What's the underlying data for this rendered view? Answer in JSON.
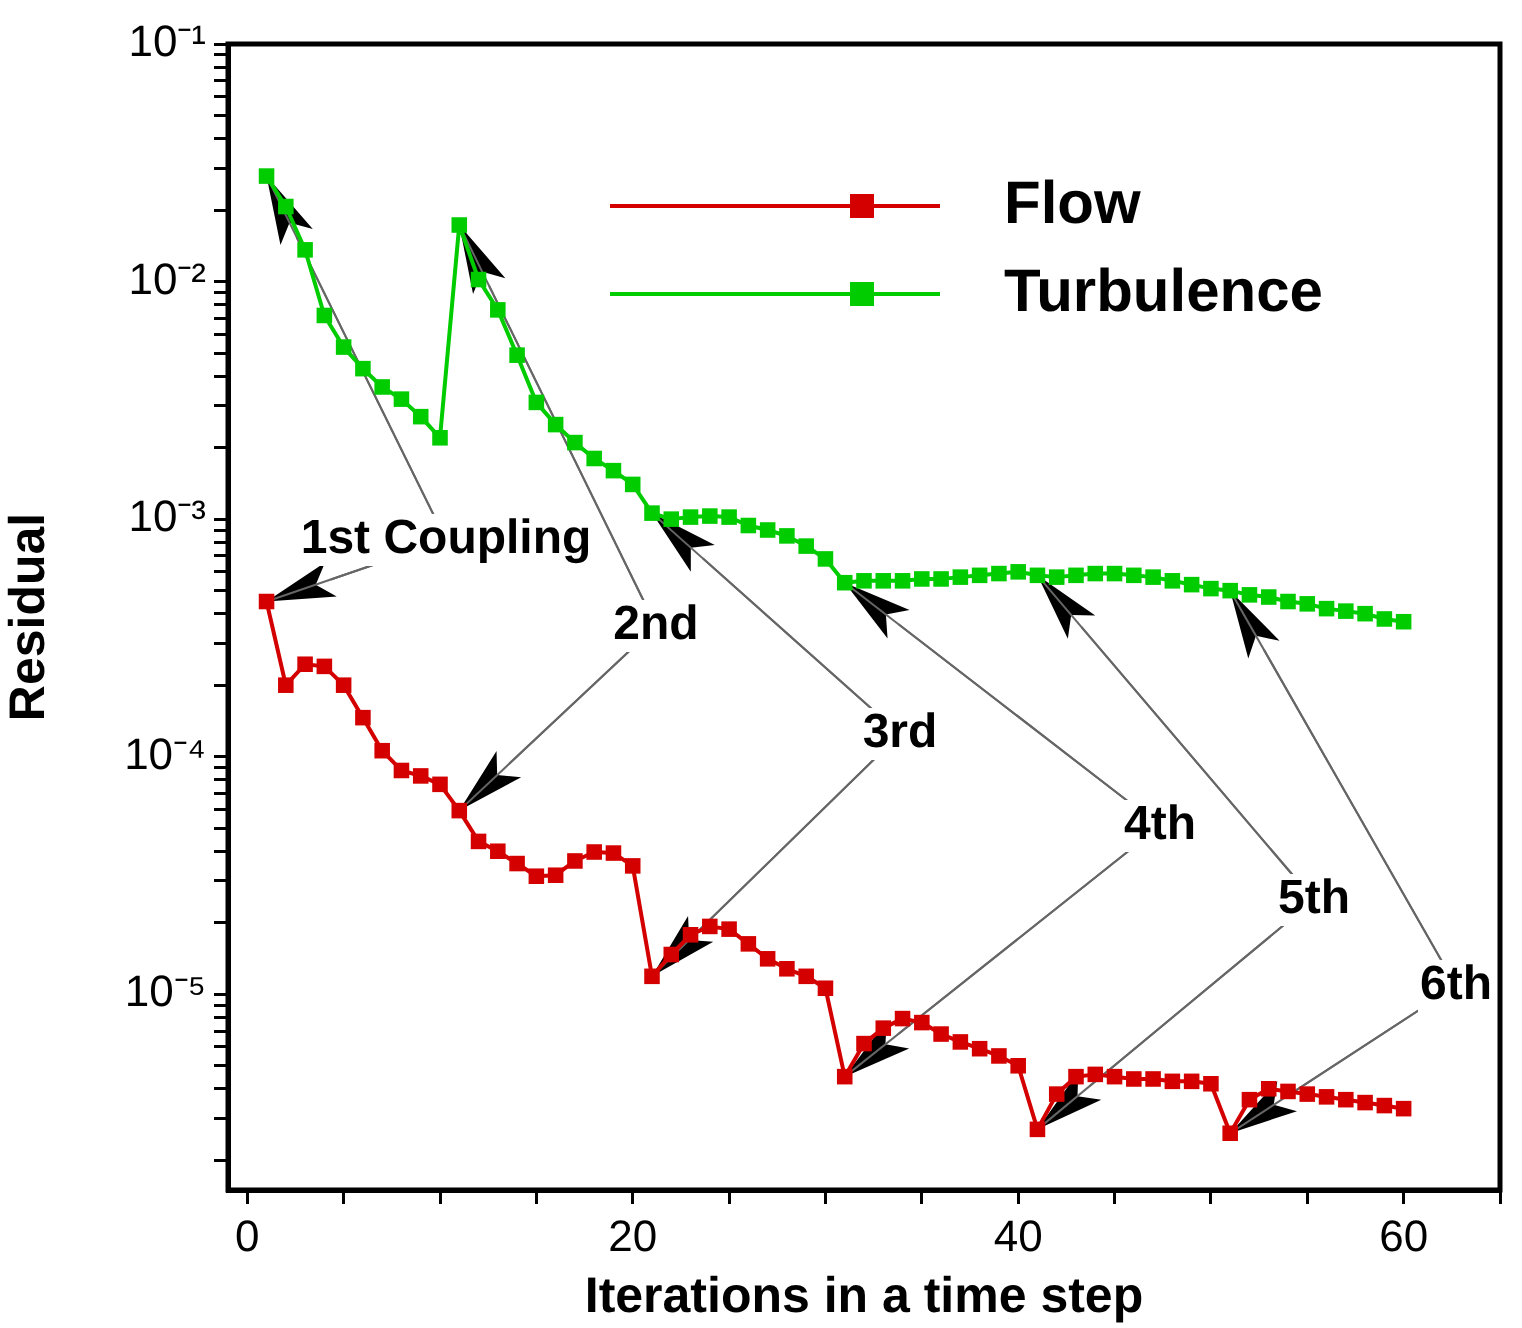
{
  "chart_data": {
    "type": "line",
    "xlabel": "Iterations in a time step",
    "ylabel": "Residual",
    "x": [
      1,
      2,
      3,
      4,
      5,
      6,
      7,
      8,
      9,
      10,
      11,
      12,
      13,
      14,
      15,
      16,
      17,
      18,
      19,
      20,
      21,
      22,
      23,
      24,
      25,
      26,
      27,
      28,
      29,
      30,
      31,
      32,
      33,
      34,
      35,
      36,
      37,
      38,
      39,
      40,
      41,
      42,
      43,
      44,
      45,
      46,
      47,
      48,
      49,
      50,
      51,
      52,
      53,
      54,
      55,
      56,
      57,
      58,
      59,
      60
    ],
    "series": [
      {
        "name": "Flow",
        "color": "#d40000",
        "values": [
          0.00045,
          0.0002,
          0.000245,
          0.00024,
          0.0002,
          0.000146,
          0.000106,
          8.75e-05,
          8.3e-05,
          7.65e-05,
          5.93e-05,
          4.4e-05,
          4e-05,
          3.55e-05,
          3.14e-05,
          3.17e-05,
          3.64e-05,
          3.97e-05,
          3.93e-05,
          3.47e-05,
          1.19e-05,
          1.47e-05,
          1.78e-05,
          1.93e-05,
          1.88e-05,
          1.63e-05,
          1.41e-05,
          1.28e-05,
          1.19e-05,
          1.06e-05,
          4.5e-06,
          6.2e-06,
          7.2e-06,
          7.9e-06,
          7.6e-06,
          6.8e-06,
          6.3e-06,
          5.9e-06,
          5.5e-06,
          5e-06,
          2.7e-06,
          3.8e-06,
          4.5e-06,
          4.6e-06,
          4.5e-06,
          4.4e-06,
          4.4e-06,
          4.3e-06,
          4.3e-06,
          4.2e-06,
          2.6e-06,
          3.6e-06,
          4e-06,
          3.9e-06,
          3.8e-06,
          3.7e-06,
          3.6e-06,
          3.5e-06,
          3.4e-06,
          3.3e-06
        ]
      },
      {
        "name": "Turbulence",
        "color": "#00cc00",
        "values": [
          0.0278,
          0.0207,
          0.0136,
          0.0072,
          0.0053,
          0.0043,
          0.0036,
          0.0032,
          0.0027,
          0.0022,
          0.0173,
          0.0102,
          0.0076,
          0.0049,
          0.0031,
          0.0025,
          0.0021,
          0.0018,
          0.0016,
          0.0014,
          0.00106,
          0.001,
          0.00102,
          0.00103,
          0.00102,
          0.00094,
          0.0009,
          0.00085,
          0.00077,
          0.00068,
          0.00054,
          0.00055,
          0.00055,
          0.00055,
          0.00056,
          0.00056,
          0.00057,
          0.00058,
          0.00059,
          0.0006,
          0.00058,
          0.00057,
          0.00058,
          0.00059,
          0.00059,
          0.00058,
          0.00057,
          0.00055,
          0.00053,
          0.00051,
          0.0005,
          0.00048,
          0.00047,
          0.00045,
          0.00044,
          0.00042,
          0.00041,
          0.0004,
          0.00038,
          0.00037
        ]
      }
    ],
    "xlim": [
      -1,
      65
    ],
    "xticks": [
      0,
      {
        "value": 5,
        "label": null
      },
      {
        "value": 10,
        "label": null
      },
      {
        "value": 15,
        "label": null
      },
      20,
      {
        "value": 25,
        "label": null
      },
      {
        "value": 30,
        "label": null
      },
      {
        "value": 35,
        "label": null
      },
      40,
      {
        "value": 45,
        "label": null
      },
      {
        "value": 50,
        "label": null
      },
      {
        "value": 55,
        "label": null
      },
      60,
      {
        "value": 65,
        "label": null
      }
    ],
    "ylim": [
      1.5e-06,
      0.1
    ],
    "yticks": [
      {
        "value": 2e-06,
        "label": null
      },
      {
        "value": 3e-06,
        "label": null
      },
      {
        "value": 4e-06,
        "label": null
      },
      {
        "value": 5e-06,
        "label": null
      },
      {
        "value": 6e-06,
        "label": null
      },
      {
        "value": 7e-06,
        "label": null
      },
      {
        "value": 8e-06,
        "label": null
      },
      {
        "value": 9e-06,
        "label": null
      },
      {
        "value": 1e-05,
        "label": "10⁻⁵"
      },
      {
        "value": 2e-05,
        "label": null
      },
      {
        "value": 3e-05,
        "label": null
      },
      {
        "value": 4e-05,
        "label": null
      },
      {
        "value": 5e-05,
        "label": null
      },
      {
        "value": 6e-05,
        "label": null
      },
      {
        "value": 7e-05,
        "label": null
      },
      {
        "value": 8e-05,
        "label": null
      },
      {
        "value": 9e-05,
        "label": null
      },
      {
        "value": 0.0001,
        "label": "10⁻⁴"
      },
      {
        "value": 0.0002,
        "label": null
      },
      {
        "value": 0.0003,
        "label": null
      },
      {
        "value": 0.0004,
        "label": null
      },
      {
        "value": 0.0005,
        "label": null
      },
      {
        "value": 0.0006,
        "label": null
      },
      {
        "value": 0.0007,
        "label": null
      },
      {
        "value": 0.0008,
        "label": null
      },
      {
        "value": 0.0009,
        "label": null
      },
      {
        "value": 0.001,
        "label": "10⁻³"
      },
      {
        "value": 0.002,
        "label": null
      },
      {
        "value": 0.003,
        "label": null
      },
      {
        "value": 0.004,
        "label": null
      },
      {
        "value": 0.005,
        "label": null
      },
      {
        "value": 0.006,
        "label": null
      },
      {
        "value": 0.007,
        "label": null
      },
      {
        "value": 0.008,
        "label": null
      },
      {
        "value": 0.009,
        "label": null
      },
      {
        "value": 0.01,
        "label": "10⁻²"
      },
      {
        "value": 0.02,
        "label": null
      },
      {
        "value": 0.03,
        "label": null
      },
      {
        "value": 0.04,
        "label": null
      },
      {
        "value": 0.05,
        "label": null
      },
      {
        "value": 0.06,
        "label": null
      },
      {
        "value": 0.07,
        "label": null
      },
      {
        "value": 0.08,
        "label": null
      },
      {
        "value": 0.09,
        "label": null
      },
      {
        "value": 0.1,
        "label": "10⁻¹"
      }
    ],
    "log": "y",
    "grid": false,
    "legend": "top right",
    "marker": "square",
    "line_style": "solid",
    "annotations": [
      {
        "text": "1st Coupling",
        "x": 1,
        "y": 0.00045
      },
      {
        "text": "2nd",
        "x": 11,
        "y": 5.93e-05
      },
      {
        "text": "3rd",
        "x": 21,
        "y": 1.19e-05
      },
      {
        "text": "4th",
        "x": 31,
        "y": 4.5e-06
      },
      {
        "text": "5th",
        "x": 41,
        "y": 2.7e-06
      },
      {
        "text": "6th",
        "x": 51,
        "y": 2.6e-06
      }
    ]
  }
}
